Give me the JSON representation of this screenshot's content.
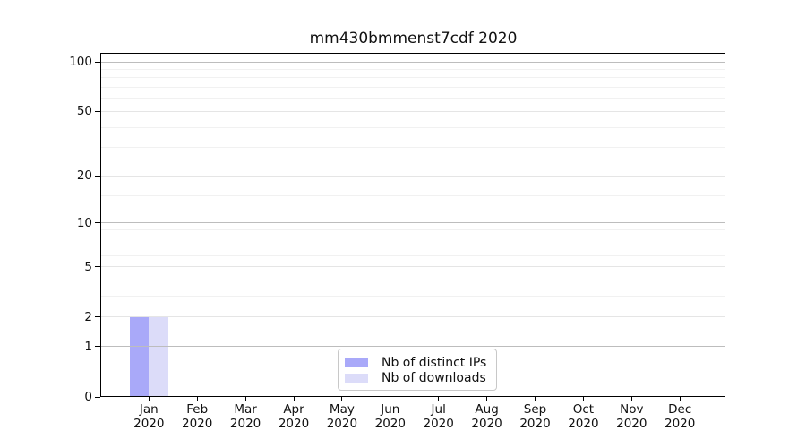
{
  "chart_data": {
    "type": "bar",
    "title": "mm430bmmenst7cdf 2020",
    "categories": [
      {
        "month": "Jan",
        "year": "2020"
      },
      {
        "month": "Feb",
        "year": "2020"
      },
      {
        "month": "Mar",
        "year": "2020"
      },
      {
        "month": "Apr",
        "year": "2020"
      },
      {
        "month": "May",
        "year": "2020"
      },
      {
        "month": "Jun",
        "year": "2020"
      },
      {
        "month": "Jul",
        "year": "2020"
      },
      {
        "month": "Aug",
        "year": "2020"
      },
      {
        "month": "Sep",
        "year": "2020"
      },
      {
        "month": "Oct",
        "year": "2020"
      },
      {
        "month": "Nov",
        "year": "2020"
      },
      {
        "month": "Dec",
        "year": "2020"
      }
    ],
    "series": [
      {
        "name": "Nb of distinct IPs",
        "color": "#a9a9f9",
        "values": [
          2,
          0,
          0,
          0,
          0,
          0,
          0,
          0,
          0,
          0,
          0,
          0
        ]
      },
      {
        "name": "Nb of downloads",
        "color": "#dcdcf9",
        "values": [
          2,
          0,
          0,
          0,
          0,
          0,
          0,
          0,
          0,
          0,
          0,
          0
        ]
      }
    ],
    "yscale": "log1p",
    "ylim": [
      0,
      113
    ],
    "yticks": [
      0,
      1,
      2,
      5,
      10,
      20,
      50,
      100
    ],
    "grid": {
      "on": true,
      "major_lines": [
        1,
        10,
        100
      ],
      "labeled_lines": [
        2,
        5,
        20,
        50
      ],
      "minor_lines": [
        3,
        4,
        6,
        7,
        8,
        9,
        15,
        30,
        40,
        60,
        70,
        80,
        90
      ]
    },
    "legend": {
      "position": "lower center"
    },
    "xlabel": "",
    "ylabel": "",
    "style": {
      "bar_color_distinct_ips": "#a9a9f9",
      "bar_color_downloads": "#dcdcf9",
      "grid_major_color": "#bdbdbd",
      "grid_labeled_color": "#e5e5e5",
      "grid_minor_color": "#f1f1f1",
      "spine_color": "#000000",
      "text_color": "#111111",
      "legend_border_color": "#c8c8c8",
      "background": "#ffffff"
    }
  }
}
